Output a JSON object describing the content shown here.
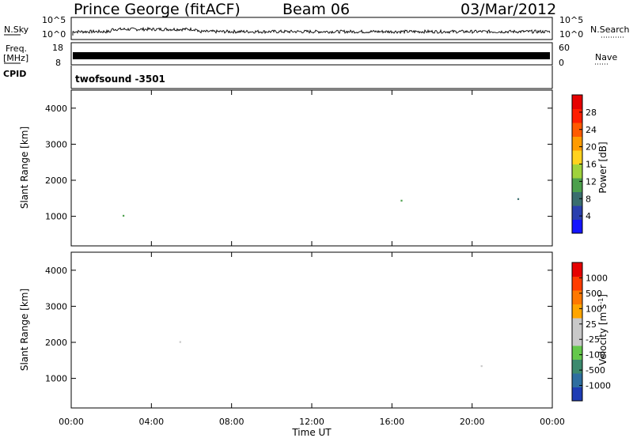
{
  "header": {
    "station": "Prince George (fitACF)",
    "beam": "Beam 06",
    "date": "03/Mar/2012"
  },
  "panels": {
    "nsky_label": "N.Sky",
    "nsky_ticks": [
      "10^5",
      "10^0"
    ],
    "nsearch_label": "N.Search",
    "nsearch_ticks": [
      "10^5",
      "10^0"
    ],
    "freq_label_1": "Freq.",
    "freq_label_2": "[MHz]",
    "freq_ticks": [
      "18",
      "8"
    ],
    "nave_label": "Nave",
    "nave_ticks": [
      "60",
      "0"
    ],
    "cpid_label": "CPID",
    "cpid_value": "twofsound -3501"
  },
  "colors": {
    "power_scale": [
      "#1414ff",
      "#2a3fae",
      "#3a6e6e",
      "#4ca04c",
      "#9fd23c",
      "#ffd21e",
      "#ff9b00",
      "#ff5a00",
      "#ff1e00",
      "#e60000"
    ],
    "velocity_scale": [
      "#1e3cb4",
      "#2e6ea0",
      "#3c8a6e",
      "#64c84b",
      "#c8c8c8",
      "#c8c8c8",
      "#ffa500",
      "#ff7800",
      "#ff3c00",
      "#e60000"
    ]
  },
  "chart_data": [
    {
      "type": "heatmap",
      "name_printed": "Power [dB]",
      "xlabel": "",
      "ylabel": "Slant Range [km]",
      "x_range_hours": [
        0,
        24
      ],
      "ylim": [
        180,
        4500
      ],
      "y_ticks": [
        "1000",
        "2000",
        "3000",
        "4000"
      ],
      "colorbar_label": "Power [dB]",
      "colorbar_ticks": [
        "28",
        "24",
        "20",
        "16",
        "12",
        "8",
        "4"
      ],
      "colorbar_range": [
        0,
        32
      ]
    },
    {
      "type": "heatmap",
      "name_printed": "Velocity [m s-1]",
      "xlabel": "Time UT",
      "ylabel": "Slant Range [km]",
      "x_range_hours": [
        0,
        24
      ],
      "x_ticks": [
        "00:00",
        "04:00",
        "08:00",
        "12:00",
        "16:00",
        "20:00",
        "00:00"
      ],
      "ylim": [
        180,
        4500
      ],
      "y_ticks": [
        "1000",
        "2000",
        "3000",
        "4000"
      ],
      "colorbar_label_main": "Velocity [m s",
      "colorbar_label_sup": "-1",
      "colorbar_label_end": "]",
      "colorbar_ticks": [
        "1000",
        "500",
        "100",
        "25",
        "-25",
        "-100",
        "-500",
        "-1000"
      ]
    }
  ]
}
